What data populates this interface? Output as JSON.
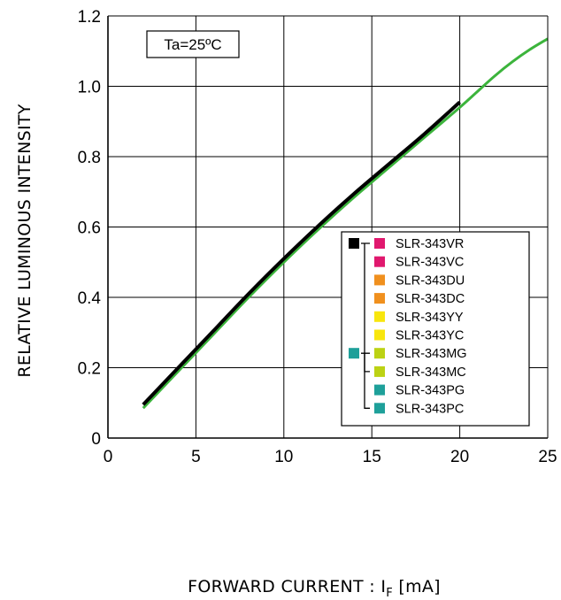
{
  "chart_data": {
    "type": "line",
    "xlabel_main": "FORWARD CURRENT : I",
    "xlabel_sub": "F",
    "xlabel_unit": " [mA]",
    "ylabel": "RELATIVE LUMINOUS INTENSITY",
    "annotation": "Ta=25ºC",
    "xlim": [
      0,
      25
    ],
    "ylim": [
      0,
      1.2
    ],
    "x_ticks": [
      "0",
      "5",
      "10",
      "15",
      "20",
      "25"
    ],
    "y_ticks": [
      "0",
      "0.2",
      "0.4",
      "0.6",
      "0.8",
      "1.0",
      "1.2"
    ],
    "grid": true,
    "legend_position": "bottom-right",
    "series": [
      {
        "color": "#000000",
        "x": [
          2,
          4,
          6,
          8,
          10,
          12,
          14,
          16,
          18,
          20
        ],
        "y": [
          0.095,
          0.2,
          0.305,
          0.41,
          0.51,
          0.605,
          0.695,
          0.78,
          0.865,
          0.955
        ]
      },
      {
        "color": "#3cb43c",
        "x": [
          2,
          4,
          6,
          8,
          10,
          12,
          14,
          16,
          18,
          20,
          21,
          22,
          23,
          24,
          25
        ],
        "y": [
          0.085,
          0.19,
          0.295,
          0.4,
          0.5,
          0.595,
          0.685,
          0.77,
          0.855,
          0.94,
          0.985,
          1.03,
          1.07,
          1.105,
          1.135
        ]
      }
    ],
    "legend": [
      {
        "label": "SLR-343VR",
        "color": "#e0186e"
      },
      {
        "label": "SLR-343VC",
        "color": "#e0186e"
      },
      {
        "label": "SLR-343DU",
        "color": "#f0901e"
      },
      {
        "label": "SLR-343DC",
        "color": "#f0901e"
      },
      {
        "label": "SLR-343YY",
        "color": "#f8e60e"
      },
      {
        "label": "SLR-343YC",
        "color": "#f8e60e"
      },
      {
        "label": "SLR-343MG",
        "color": "#bcd214"
      },
      {
        "label": "SLR-343MC",
        "color": "#bcd214"
      },
      {
        "label": "SLR-343PG",
        "color": "#1ea09a"
      },
      {
        "label": "SLR-343PC",
        "color": "#1ea09a"
      }
    ],
    "legend_groups": [
      {
        "color": "#000000",
        "from": 0,
        "to": 7
      },
      {
        "color": "#1ea09a",
        "from": 6,
        "to": 9
      }
    ]
  }
}
